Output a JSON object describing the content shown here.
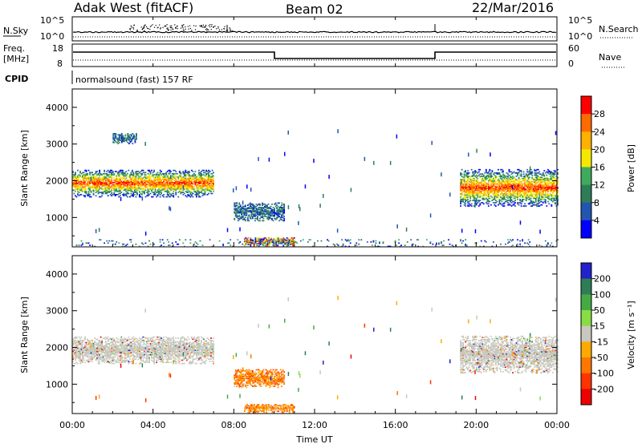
{
  "header": {
    "station": "Adak West (fitACF)",
    "beam": "Beam 02",
    "date": "22/Mar/2016"
  },
  "nsky_panel": {
    "label": "N.Sky",
    "left_ticks": [
      "10^5",
      "10^0"
    ],
    "right_ticks": [
      "10^5",
      "10^0"
    ],
    "right_label": "N.Search"
  },
  "freq_panel": {
    "label_line1": "Freq.",
    "label_line2": "[MHz]",
    "left_ticks": [
      "18",
      "8"
    ],
    "right_ticks": [
      "60",
      "0"
    ],
    "right_label": "Nave"
  },
  "cpid_panel": {
    "label": "CPID",
    "text": "normalsound (fast) 157 RF"
  },
  "x_axis": {
    "label": "Time UT",
    "ticks": [
      "00:00",
      "04:00",
      "08:00",
      "12:00",
      "16:00",
      "20:00",
      "00:00"
    ]
  },
  "chart_data": [
    {
      "type": "heatmap",
      "title": "",
      "xlabel": "Time UT",
      "ylabel": "Slant Range [km]",
      "xlim": [
        0,
        24
      ],
      "ylim": [
        200,
        4500
      ],
      "y_ticks": [
        1000,
        2000,
        3000,
        4000
      ],
      "colorbar": {
        "label": "Power [dB]",
        "ticks": [
          "28",
          "24",
          "20",
          "16",
          "12",
          "8",
          "4"
        ],
        "colors": [
          "#ff0000",
          "#ff6a00",
          "#ffb000",
          "#f5e800",
          "#3fa95c",
          "#2e7d57",
          "#2255b0",
          "#0000ff"
        ]
      },
      "regions": [
        {
          "t": [
            0.0,
            7.0
          ],
          "r": [
            1550,
            2300
          ],
          "peak": "high"
        },
        {
          "t": [
            2.0,
            3.2
          ],
          "r": [
            3000,
            3300
          ],
          "peak": "low"
        },
        {
          "t": [
            8.0,
            10.5
          ],
          "r": [
            900,
            1400
          ],
          "peak": "low"
        },
        {
          "t": [
            8.5,
            11.0
          ],
          "r": [
            220,
            450
          ],
          "peak": "mixed"
        },
        {
          "t": [
            19.2,
            24.0
          ],
          "r": [
            1300,
            2300
          ],
          "peak": "high"
        },
        {
          "t": [
            0.0,
            24.0
          ],
          "r": [
            200,
            400
          ],
          "peak": "sparse"
        }
      ]
    },
    {
      "type": "heatmap",
      "title": "",
      "xlabel": "Time UT",
      "ylabel": "Slant Range [km]",
      "xlim": [
        0,
        24
      ],
      "ylim": [
        200,
        4500
      ],
      "y_ticks": [
        1000,
        2000,
        3000,
        4000
      ],
      "colorbar": {
        "label": "Velocity [m s⁻¹]",
        "ticks": [
          "200",
          "100",
          "50",
          "15",
          "-15",
          "-50",
          "-100",
          "-200"
        ],
        "colors": [
          "#2222cc",
          "#2e7d57",
          "#44aa44",
          "#88dd44",
          "#c8c8c0",
          "#ffaa00",
          "#ff7700",
          "#ff3300",
          "#ee0000"
        ]
      },
      "regions": [
        {
          "t": [
            0.0,
            7.0
          ],
          "r": [
            1550,
            2300
          ],
          "velocity": "ground"
        },
        {
          "t": [
            8.0,
            10.5
          ],
          "r": [
            900,
            1400
          ],
          "velocity": "negative"
        },
        {
          "t": [
            8.5,
            11.0
          ],
          "r": [
            220,
            450
          ],
          "velocity": "negative"
        },
        {
          "t": [
            19.2,
            24.0
          ],
          "r": [
            1300,
            2300
          ],
          "velocity": "ground"
        }
      ]
    }
  ]
}
